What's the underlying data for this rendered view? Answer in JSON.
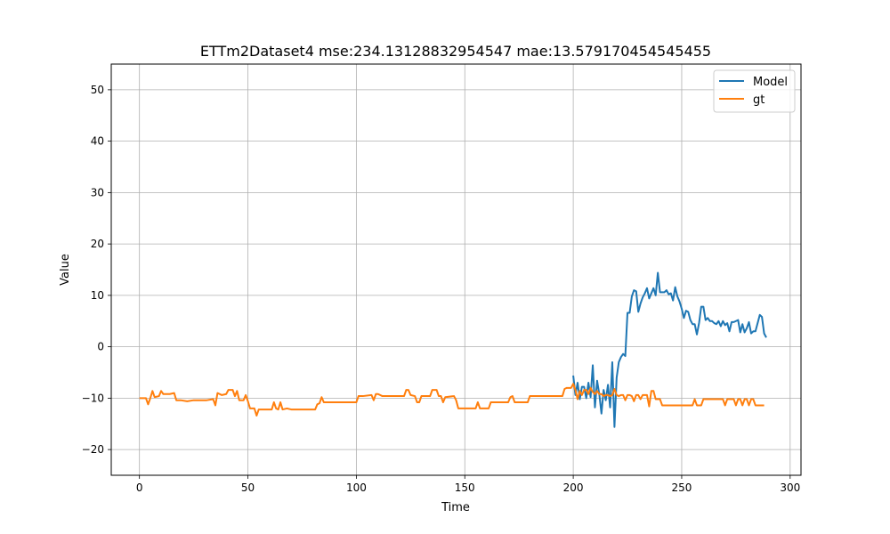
{
  "chart_data": {
    "type": "line",
    "title": "ETTm2Dataset4 mse:234.13128832954547 mae:13.579170454545455",
    "xlabel": "Time",
    "ylabel": "Value",
    "xlim": [
      -13,
      305
    ],
    "ylim": [
      -25,
      55
    ],
    "xticks": [
      0,
      50,
      100,
      150,
      200,
      250,
      300
    ],
    "yticks": [
      -20,
      -10,
      0,
      10,
      20,
      30,
      40,
      50
    ],
    "grid": true,
    "legend_position": "top-right",
    "series": [
      {
        "name": "Model",
        "color": "#1f77b4",
        "points": [
          [
            200,
            -5.6
          ],
          [
            201,
            -9.4
          ],
          [
            202,
            -7.0
          ],
          [
            203,
            -10.2
          ],
          [
            204,
            -7.8
          ],
          [
            205,
            -7.8
          ],
          [
            206,
            -10.0
          ],
          [
            207,
            -7.0
          ],
          [
            208,
            -9.8
          ],
          [
            209,
            -3.6
          ],
          [
            210,
            -11.8
          ],
          [
            211,
            -6.6
          ],
          [
            212,
            -9.2
          ],
          [
            213,
            -13.0
          ],
          [
            214,
            -8.4
          ],
          [
            215,
            -10.4
          ],
          [
            216,
            -7.4
          ],
          [
            217,
            -11.8
          ],
          [
            218,
            -3.0
          ],
          [
            219,
            -15.6
          ],
          [
            220,
            -6.0
          ],
          [
            221,
            -3.0
          ],
          [
            222,
            -2.0
          ],
          [
            223,
            -1.4
          ],
          [
            224,
            -1.8
          ],
          [
            225,
            6.6
          ],
          [
            226,
            6.6
          ],
          [
            227,
            9.8
          ],
          [
            228,
            11.0
          ],
          [
            229,
            10.8
          ],
          [
            230,
            6.8
          ],
          [
            231,
            8.4
          ],
          [
            232,
            9.6
          ],
          [
            233,
            10.4
          ],
          [
            234,
            11.4
          ],
          [
            235,
            9.4
          ],
          [
            236,
            10.4
          ],
          [
            237,
            11.4
          ],
          [
            238,
            10.0
          ],
          [
            239,
            14.4
          ],
          [
            240,
            10.6
          ],
          [
            241,
            10.6
          ],
          [
            242,
            10.6
          ],
          [
            243,
            11.0
          ],
          [
            244,
            10.2
          ],
          [
            245,
            10.4
          ],
          [
            246,
            9.0
          ],
          [
            247,
            11.6
          ],
          [
            248,
            9.8
          ],
          [
            249,
            8.8
          ],
          [
            250,
            7.4
          ],
          [
            251,
            5.6
          ],
          [
            252,
            7.0
          ],
          [
            253,
            6.8
          ],
          [
            254,
            5.2
          ],
          [
            255,
            4.4
          ],
          [
            256,
            4.4
          ],
          [
            257,
            2.4
          ],
          [
            258,
            4.6
          ],
          [
            259,
            7.8
          ],
          [
            260,
            7.8
          ],
          [
            261,
            5.2
          ],
          [
            262,
            5.6
          ],
          [
            263,
            5.0
          ],
          [
            264,
            5.0
          ],
          [
            265,
            4.6
          ],
          [
            266,
            4.4
          ],
          [
            267,
            5.0
          ],
          [
            268,
            4.0
          ],
          [
            269,
            5.0
          ],
          [
            270,
            4.2
          ],
          [
            271,
            4.6
          ],
          [
            272,
            3.0
          ],
          [
            273,
            4.8
          ],
          [
            274,
            4.8
          ],
          [
            275,
            5.0
          ],
          [
            276,
            5.2
          ],
          [
            277,
            2.8
          ],
          [
            278,
            4.4
          ],
          [
            279,
            2.8
          ],
          [
            280,
            3.6
          ],
          [
            281,
            4.8
          ],
          [
            282,
            2.6
          ],
          [
            283,
            3.0
          ],
          [
            284,
            3.0
          ],
          [
            285,
            4.6
          ],
          [
            286,
            6.2
          ],
          [
            287,
            5.8
          ],
          [
            288,
            2.6
          ],
          [
            289,
            1.8
          ]
        ]
      },
      {
        "name": "gt",
        "color": "#ff7f0e",
        "points": [
          [
            0,
            -10.0
          ],
          [
            3,
            -10.0
          ],
          [
            4,
            -11.2
          ],
          [
            5,
            -10.0
          ],
          [
            6,
            -8.6
          ],
          [
            7,
            -9.8
          ],
          [
            9,
            -9.6
          ],
          [
            10,
            -8.6
          ],
          [
            11,
            -9.2
          ],
          [
            12,
            -9.2
          ],
          [
            14,
            -9.2
          ],
          [
            16,
            -9.0
          ],
          [
            17,
            -10.4
          ],
          [
            19,
            -10.4
          ],
          [
            22,
            -10.6
          ],
          [
            25,
            -10.4
          ],
          [
            31,
            -10.4
          ],
          [
            34,
            -10.2
          ],
          [
            35,
            -11.4
          ],
          [
            36,
            -9.0
          ],
          [
            38,
            -9.4
          ],
          [
            40,
            -9.2
          ],
          [
            41,
            -8.4
          ],
          [
            43,
            -8.4
          ],
          [
            44,
            -9.6
          ],
          [
            45,
            -8.6
          ],
          [
            46,
            -10.4
          ],
          [
            48,
            -10.4
          ],
          [
            49,
            -9.4
          ],
          [
            50,
            -10.6
          ],
          [
            51,
            -12.0
          ],
          [
            53,
            -12.0
          ],
          [
            54,
            -13.4
          ],
          [
            55,
            -12.2
          ],
          [
            57,
            -12.2
          ],
          [
            61,
            -12.2
          ],
          [
            62,
            -10.8
          ],
          [
            63,
            -12.0
          ],
          [
            64,
            -12.2
          ],
          [
            65,
            -10.8
          ],
          [
            66,
            -12.2
          ],
          [
            68,
            -12.0
          ],
          [
            70,
            -12.2
          ],
          [
            81,
            -12.2
          ],
          [
            82,
            -11.2
          ],
          [
            83,
            -11.0
          ],
          [
            84,
            -9.8
          ],
          [
            85,
            -10.8
          ],
          [
            92,
            -10.8
          ],
          [
            100,
            -10.8
          ],
          [
            101,
            -9.6
          ],
          [
            103,
            -9.6
          ],
          [
            107,
            -9.4
          ],
          [
            108,
            -10.4
          ],
          [
            109,
            -9.2
          ],
          [
            110,
            -9.2
          ],
          [
            112,
            -9.6
          ],
          [
            119,
            -9.6
          ],
          [
            122,
            -9.6
          ],
          [
            123,
            -8.4
          ],
          [
            124,
            -8.4
          ],
          [
            125,
            -9.4
          ],
          [
            127,
            -9.6
          ],
          [
            128,
            -10.8
          ],
          [
            129,
            -10.8
          ],
          [
            130,
            -9.6
          ],
          [
            131,
            -9.6
          ],
          [
            134,
            -9.6
          ],
          [
            135,
            -8.4
          ],
          [
            137,
            -8.4
          ],
          [
            138,
            -9.6
          ],
          [
            139,
            -9.6
          ],
          [
            140,
            -10.8
          ],
          [
            141,
            -9.8
          ],
          [
            145,
            -9.6
          ],
          [
            146,
            -10.4
          ],
          [
            147,
            -12.0
          ],
          [
            150,
            -12.0
          ],
          [
            155,
            -12.0
          ],
          [
            156,
            -10.8
          ],
          [
            157,
            -12.0
          ],
          [
            161,
            -12.0
          ],
          [
            162,
            -10.8
          ],
          [
            170,
            -10.8
          ],
          [
            171,
            -9.8
          ],
          [
            172,
            -9.6
          ],
          [
            173,
            -10.8
          ],
          [
            174,
            -10.8
          ],
          [
            179,
            -10.8
          ],
          [
            180,
            -9.6
          ],
          [
            181,
            -9.6
          ],
          [
            183,
            -9.6
          ],
          [
            193,
            -9.6
          ],
          [
            195,
            -9.6
          ],
          [
            196,
            -8.2
          ],
          [
            197,
            -8.0
          ],
          [
            199,
            -8.0
          ],
          [
            200,
            -7.2
          ],
          [
            201,
            -8.4
          ],
          [
            202,
            -10.2
          ],
          [
            203,
            -8.6
          ],
          [
            204,
            -9.4
          ],
          [
            205,
            -8.4
          ],
          [
            206,
            -8.4
          ],
          [
            207,
            -9.2
          ],
          [
            208,
            -8.0
          ],
          [
            209,
            -8.8
          ],
          [
            210,
            -9.2
          ],
          [
            211,
            -8.6
          ],
          [
            212,
            -9.2
          ],
          [
            213,
            -9.2
          ],
          [
            214,
            -9.6
          ],
          [
            215,
            -9.4
          ],
          [
            216,
            -9.4
          ],
          [
            217,
            -9.6
          ],
          [
            218,
            -9.4
          ],
          [
            219,
            -8.2
          ],
          [
            220,
            -9.4
          ],
          [
            221,
            -9.6
          ],
          [
            222,
            -9.4
          ],
          [
            223,
            -9.4
          ],
          [
            224,
            -10.4
          ],
          [
            225,
            -9.4
          ],
          [
            226,
            -9.4
          ],
          [
            227,
            -9.6
          ],
          [
            228,
            -10.6
          ],
          [
            229,
            -9.4
          ],
          [
            230,
            -9.4
          ],
          [
            231,
            -10.2
          ],
          [
            232,
            -9.4
          ],
          [
            233,
            -9.4
          ],
          [
            234,
            -9.4
          ],
          [
            235,
            -11.6
          ],
          [
            236,
            -8.6
          ],
          [
            237,
            -8.6
          ],
          [
            238,
            -10.2
          ],
          [
            239,
            -10.2
          ],
          [
            240,
            -10.2
          ],
          [
            241,
            -11.4
          ],
          [
            242,
            -11.4
          ],
          [
            250,
            -11.4
          ],
          [
            254,
            -11.4
          ],
          [
            255,
            -11.4
          ],
          [
            256,
            -10.2
          ],
          [
            257,
            -11.4
          ],
          [
            259,
            -11.4
          ],
          [
            260,
            -10.2
          ],
          [
            263,
            -10.2
          ],
          [
            269,
            -10.2
          ],
          [
            270,
            -11.4
          ],
          [
            271,
            -10.2
          ],
          [
            273,
            -10.2
          ],
          [
            274,
            -10.2
          ],
          [
            275,
            -11.4
          ],
          [
            276,
            -10.2
          ],
          [
            277,
            -10.2
          ],
          [
            278,
            -11.4
          ],
          [
            279,
            -10.2
          ],
          [
            280,
            -10.2
          ],
          [
            281,
            -11.4
          ],
          [
            282,
            -10.2
          ],
          [
            283,
            -10.2
          ],
          [
            284,
            -11.4
          ],
          [
            286,
            -11.4
          ],
          [
            287,
            -11.4
          ],
          [
            288,
            -11.4
          ]
        ]
      }
    ]
  }
}
